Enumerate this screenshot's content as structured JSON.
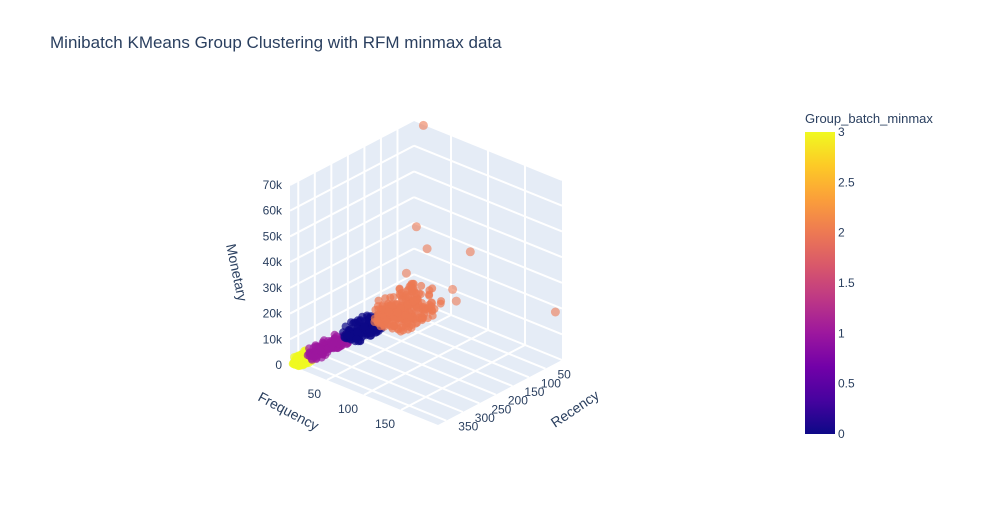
{
  "chart_data": {
    "type": "scatter3d",
    "title": "Minibatch KMeans Group Clustering with RFM minmax data",
    "axes": {
      "x": {
        "label": "Recency",
        "ticks": [
          50,
          100,
          150,
          200,
          250,
          300,
          350
        ],
        "range": [
          0,
          375
        ]
      },
      "y": {
        "label": "Frequency",
        "ticks": [
          50,
          100,
          150
        ],
        "range": [
          0,
          200
        ]
      },
      "z": {
        "label": "Monetary",
        "ticks": [
          "0",
          "10k",
          "20k",
          "30k",
          "40k",
          "50k",
          "60k",
          "70k"
        ],
        "range": [
          0,
          70000
        ]
      }
    },
    "colorbar": {
      "title": "Group_batch_minmax",
      "ticks": [
        "0",
        "0.5",
        "1",
        "1.5",
        "2",
        "2.5",
        "3"
      ],
      "range": [
        0,
        3
      ],
      "colorscale": [
        "#0d0887",
        "#46039f",
        "#7201a8",
        "#9c179e",
        "#bd3786",
        "#d8576b",
        "#ed7953",
        "#fb9f3a",
        "#fdca26",
        "#f0f921"
      ]
    },
    "groups": [
      {
        "group": 3,
        "color": "#f0f921",
        "recency": [
          330,
          370
        ],
        "frequency": [
          1,
          12
        ],
        "monetary": [
          0,
          3000
        ],
        "count": 180
      },
      {
        "group": 1,
        "color": "#9c179e",
        "recency": [
          220,
          330
        ],
        "frequency": [
          2,
          15
        ],
        "monetary": [
          0,
          3500
        ],
        "count": 150
      },
      {
        "group": 0,
        "color": "#0d0887",
        "recency": [
          130,
          220
        ],
        "frequency": [
          2,
          20
        ],
        "monetary": [
          0,
          5000
        ],
        "count": 150
      },
      {
        "group": 2,
        "color": "#ed7953",
        "recency": [
          0,
          130
        ],
        "frequency": [
          2,
          40
        ],
        "monetary": [
          0,
          9000
        ],
        "count": 260
      }
    ],
    "outliers": [
      {
        "recency": 5,
        "frequency": 15,
        "monetary": 70000,
        "group": 2
      },
      {
        "recency": 20,
        "frequency": 200,
        "monetary": 20000,
        "group": 2
      },
      {
        "recency": 20,
        "frequency": 85,
        "monetary": 30000,
        "group": 2
      },
      {
        "recency": 60,
        "frequency": 30,
        "monetary": 36000,
        "group": 2
      },
      {
        "recency": 50,
        "frequency": 40,
        "monetary": 28000,
        "group": 2
      },
      {
        "recency": 40,
        "frequency": 70,
        "monetary": 15000,
        "group": 2
      },
      {
        "recency": 90,
        "frequency": 30,
        "monetary": 20000,
        "group": 2
      },
      {
        "recency": 40,
        "frequency": 75,
        "monetary": 11000,
        "group": 2
      },
      {
        "recency": 70,
        "frequency": 55,
        "monetary": 10000,
        "group": 2
      }
    ]
  }
}
